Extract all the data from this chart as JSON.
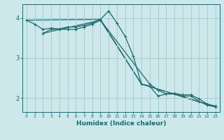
{
  "xlabel": "Humidex (Indice chaleur)",
  "bg_color": "#cce8eb",
  "grid_color": "#aacdd1",
  "line_color": "#1a6b6b",
  "xlim": [
    -0.5,
    23.5
  ],
  "ylim": [
    1.65,
    4.35
  ],
  "yticks": [
    2,
    3,
    4
  ],
  "xticks": [
    0,
    1,
    2,
    3,
    4,
    5,
    6,
    7,
    8,
    9,
    10,
    11,
    12,
    13,
    14,
    15,
    16,
    17,
    18,
    19,
    20,
    21,
    22,
    23
  ],
  "line1_x": [
    0,
    1,
    2,
    3,
    4,
    5,
    6,
    7,
    8,
    9,
    10,
    11,
    12,
    13,
    14,
    15,
    16,
    17,
    18,
    19,
    20,
    21,
    22,
    23
  ],
  "line1_y": [
    3.95,
    3.85,
    3.72,
    3.75,
    3.73,
    3.78,
    3.78,
    3.82,
    3.88,
    3.97,
    4.18,
    3.88,
    3.55,
    3.05,
    2.35,
    2.3,
    2.05,
    2.1,
    2.1,
    2.05,
    2.05,
    1.92,
    1.82,
    1.78
  ],
  "line2_x": [
    2,
    3,
    4,
    5,
    6,
    7,
    8,
    9,
    15,
    16,
    17,
    18,
    19,
    20,
    21,
    22,
    23
  ],
  "line2_y": [
    3.62,
    3.72,
    3.72,
    3.72,
    3.72,
    3.78,
    3.85,
    3.95,
    2.35,
    2.2,
    2.1,
    2.12,
    2.08,
    2.08,
    1.98,
    1.85,
    1.8
  ],
  "line3_x": [
    0,
    9,
    14,
    23
  ],
  "line3_y": [
    3.95,
    3.97,
    2.35,
    1.78
  ],
  "line4_x": [
    2,
    9,
    14,
    23
  ],
  "line4_y": [
    3.62,
    3.95,
    2.35,
    1.78
  ],
  "markersize": 3.5,
  "linewidth": 0.9
}
